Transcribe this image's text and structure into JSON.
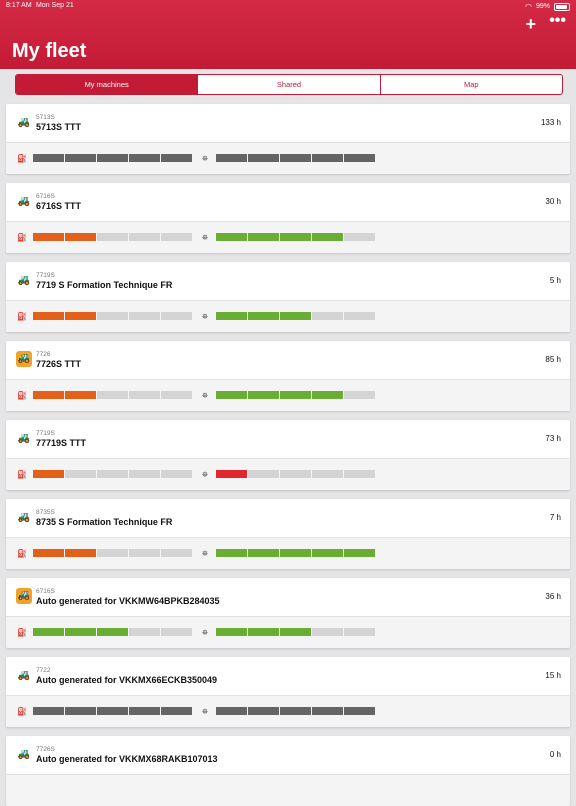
{
  "status_bar": {
    "time": "8:17 AM",
    "date": "Mon Sep 21",
    "battery": "99%"
  },
  "header": {
    "title": "My fleet",
    "add_label": "+",
    "more_label": "•••"
  },
  "tabs": [
    {
      "label": "My machines",
      "active": true
    },
    {
      "label": "Shared",
      "active": false
    },
    {
      "label": "Map",
      "active": false
    }
  ],
  "colors": {
    "accent": "#c31a36",
    "grey": "#646464",
    "orange": "#e2601a",
    "green": "#6aad33",
    "red": "#e2262d",
    "empty": "#d4d4d4",
    "alert_icon_bg": "#f1a22b"
  },
  "machines": [
    {
      "model": "5713S",
      "name": "5713S TTT",
      "hours": "133 h",
      "alert": false,
      "fuel": [
        "grey",
        "grey",
        "grey",
        "grey",
        "grey"
      ],
      "def": [
        "grey",
        "grey",
        "grey",
        "grey",
        "grey"
      ]
    },
    {
      "model": "6716S",
      "name": "6716S TTT",
      "hours": "30 h",
      "alert": false,
      "fuel": [
        "orange",
        "orange",
        "empty",
        "empty",
        "empty"
      ],
      "def": [
        "green",
        "green",
        "green",
        "green",
        "empty"
      ]
    },
    {
      "model": "7719S",
      "name": "7719 S Formation Technique FR",
      "hours": "5 h",
      "alert": false,
      "fuel": [
        "orange",
        "orange",
        "empty",
        "empty",
        "empty"
      ],
      "def": [
        "green",
        "green",
        "green",
        "empty",
        "empty"
      ]
    },
    {
      "model": "7726",
      "name": "7726S TTT",
      "hours": "85 h",
      "alert": true,
      "fuel": [
        "orange",
        "orange",
        "empty",
        "empty",
        "empty"
      ],
      "def": [
        "green",
        "green",
        "green",
        "green",
        "empty"
      ]
    },
    {
      "model": "7719S",
      "name": "77719S TTT",
      "hours": "73 h",
      "alert": false,
      "fuel": [
        "orange",
        "empty",
        "empty",
        "empty",
        "empty"
      ],
      "def": [
        "red",
        "empty",
        "empty",
        "empty",
        "empty"
      ]
    },
    {
      "model": "8735S",
      "name": "8735 S Formation Technique FR",
      "hours": "7 h",
      "alert": false,
      "fuel": [
        "orange",
        "orange",
        "empty",
        "empty",
        "empty"
      ],
      "def": [
        "green",
        "green",
        "green",
        "green",
        "green"
      ]
    },
    {
      "model": "6716S",
      "name": "Auto generated for VKKMW64BPKB284035",
      "hours": "36 h",
      "alert": true,
      "fuel": [
        "green",
        "green",
        "green",
        "empty",
        "empty"
      ],
      "def": [
        "green",
        "green",
        "green",
        "empty",
        "empty"
      ]
    },
    {
      "model": "7722",
      "name": "Auto generated for VKKMX66ECKB350049",
      "hours": "15 h",
      "alert": false,
      "fuel": [
        "grey",
        "grey",
        "grey",
        "grey",
        "grey"
      ],
      "def": [
        "grey",
        "grey",
        "grey",
        "grey",
        "grey"
      ]
    },
    {
      "model": "7726S",
      "name": "Auto generated for VKKMX68RAKB107013",
      "hours": "0 h",
      "alert": false,
      "fuel": [],
      "def": []
    }
  ]
}
